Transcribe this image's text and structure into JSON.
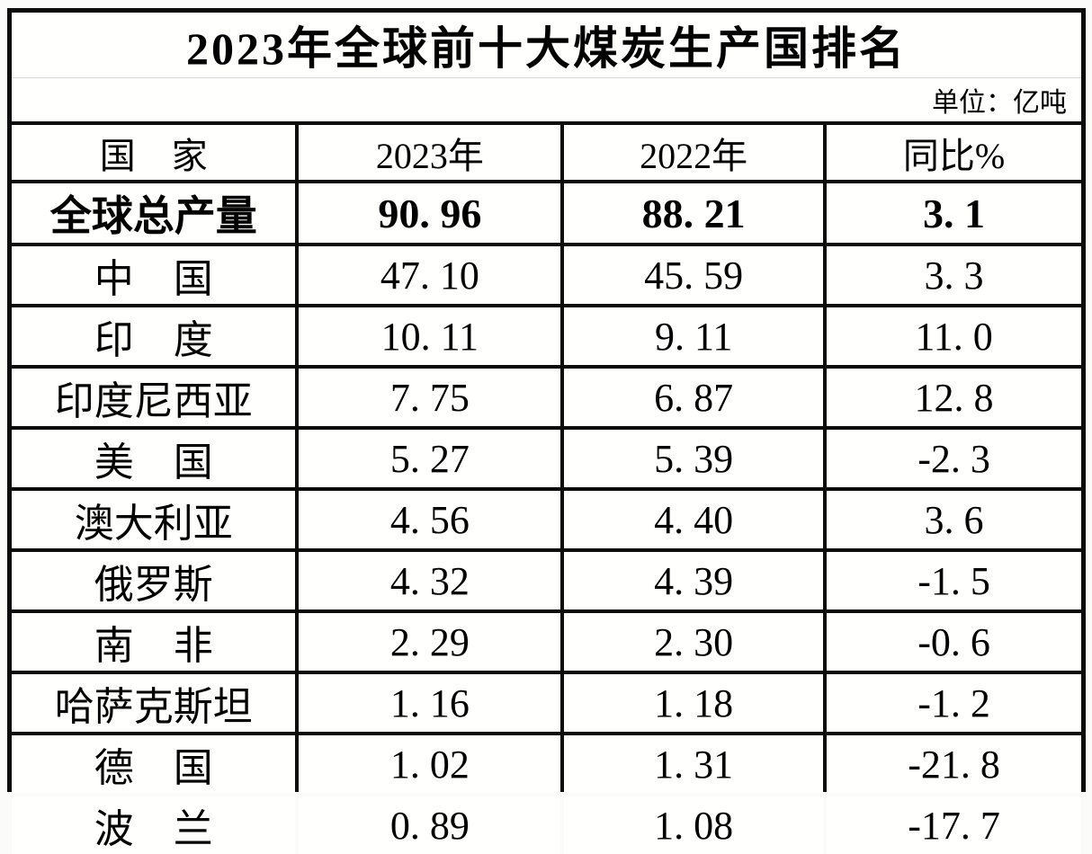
{
  "title": "2023年全球前十大煤炭生产国排名",
  "unit_label": "单位：亿吨",
  "colors": {
    "border": "#0c0c0c",
    "background": "#fffffe",
    "text": "#000000",
    "title_divider": "#d9d9d2"
  },
  "table": {
    "columns": [
      "国　家",
      "2023年",
      "2022年",
      "同比%"
    ],
    "rows": [
      {
        "country": "全球总产量",
        "y2023": "90. 96",
        "y2022": "88. 21",
        "yoy": "3. 1",
        "bold": true
      },
      {
        "country": "中　国",
        "y2023": "47. 10",
        "y2022": "45. 59",
        "yoy": "3. 3",
        "bold": false
      },
      {
        "country": "印　度",
        "y2023": "10. 11",
        "y2022": "9. 11",
        "yoy": "11. 0",
        "bold": false
      },
      {
        "country": "印度尼西亚",
        "y2023": "7. 75",
        "y2022": "6. 87",
        "yoy": "12. 8",
        "bold": false
      },
      {
        "country": "美　国",
        "y2023": "5. 27",
        "y2022": "5. 39",
        "yoy": "-2. 3",
        "bold": false
      },
      {
        "country": "澳大利亚",
        "y2023": "4. 56",
        "y2022": "4. 40",
        "yoy": "3. 6",
        "bold": false
      },
      {
        "country": "俄罗斯",
        "y2023": "4. 32",
        "y2022": "4. 39",
        "yoy": "-1. 5",
        "bold": false
      },
      {
        "country": "南　非",
        "y2023": "2. 29",
        "y2022": "2. 30",
        "yoy": "-0. 6",
        "bold": false
      },
      {
        "country": "哈萨克斯坦",
        "y2023": "1. 16",
        "y2022": "1. 18",
        "yoy": "-1. 2",
        "bold": false
      },
      {
        "country": "德　国",
        "y2023": "1. 02",
        "y2022": "1. 31",
        "yoy": "-21. 8",
        "bold": false
      },
      {
        "country": "波　兰",
        "y2023": "0. 89",
        "y2022": "1. 08",
        "yoy": "-17. 7",
        "bold": false
      }
    ]
  },
  "chart_data": {
    "type": "table",
    "title": "2023年全球前十大煤炭生产国排名",
    "unit": "亿吨",
    "columns": [
      "国家",
      "2023年",
      "2022年",
      "同比%"
    ],
    "rows": [
      {
        "country": "全球总产量",
        "production_2023": 90.96,
        "production_2022": 88.21,
        "yoy_pct": 3.1
      },
      {
        "country": "中国",
        "production_2023": 47.1,
        "production_2022": 45.59,
        "yoy_pct": 3.3
      },
      {
        "country": "印度",
        "production_2023": 10.11,
        "production_2022": 9.11,
        "yoy_pct": 11.0
      },
      {
        "country": "印度尼西亚",
        "production_2023": 7.75,
        "production_2022": 6.87,
        "yoy_pct": 12.8
      },
      {
        "country": "美国",
        "production_2023": 5.27,
        "production_2022": 5.39,
        "yoy_pct": -2.3
      },
      {
        "country": "澳大利亚",
        "production_2023": 4.56,
        "production_2022": 4.4,
        "yoy_pct": 3.6
      },
      {
        "country": "俄罗斯",
        "production_2023": 4.32,
        "production_2022": 4.39,
        "yoy_pct": -1.5
      },
      {
        "country": "南非",
        "production_2023": 2.29,
        "production_2022": 2.3,
        "yoy_pct": -0.6
      },
      {
        "country": "哈萨克斯坦",
        "production_2023": 1.16,
        "production_2022": 1.18,
        "yoy_pct": -1.2
      },
      {
        "country": "德国",
        "production_2023": 1.02,
        "production_2022": 1.31,
        "yoy_pct": -21.8
      },
      {
        "country": "波兰",
        "production_2023": 0.89,
        "production_2022": 1.08,
        "yoy_pct": -17.7
      }
    ]
  }
}
